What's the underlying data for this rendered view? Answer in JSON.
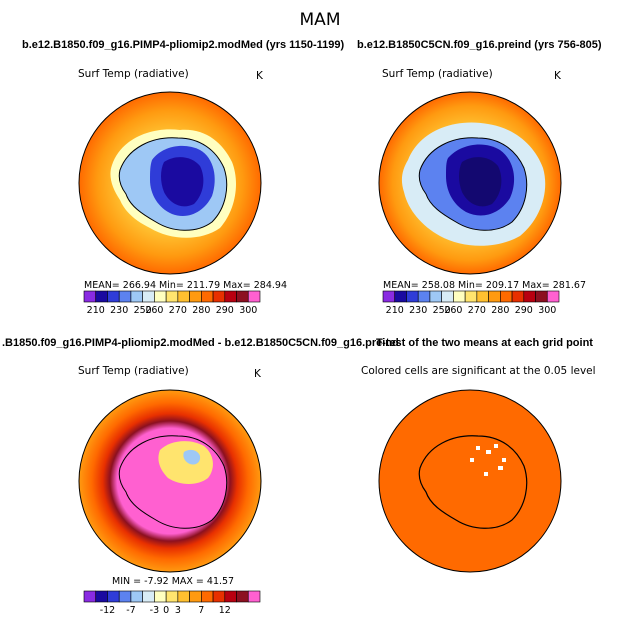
{
  "title": "MAM",
  "panels": [
    {
      "title": "b.e12.B1850.f09_g16.PIMP4-pliomip2.modMed (yrs 1150-1199)",
      "variable": "Surf Temp (radiative)",
      "units": "K",
      "stats": "MEAN= 266.94  Min= 211.79  Max= 284.94"
    },
    {
      "title": "b.e12.B1850C5CN.f09_g16.preind (yrs 756-805)",
      "variable": "Surf Temp (radiative)",
      "units": "K",
      "stats": "MEAN= 258.08  Min= 209.17  Max= 281.67"
    },
    {
      "title": ".B1850.f09_g16.PIMP4-pliomip2.modMed - b.e12.B1850C5CN.f09_g16.preind",
      "variable": "Surf Temp (radiative)",
      "units": "K",
      "stats": "MIN =  -7.92  MAX =  41.57"
    },
    {
      "title": "T-test of the two means at each grid point",
      "variable": "Colored cells are significant at the 0.05 level"
    }
  ],
  "colorbars": {
    "abs": {
      "colors": [
        "#8a2be2",
        "#1a0aa0",
        "#2f3cd8",
        "#5c82f0",
        "#9ec8f5",
        "#d8ecf6",
        "#ffffc0",
        "#ffe46e",
        "#ffc030",
        "#ff9a10",
        "#ff6a00",
        "#e83000",
        "#b80010",
        "#8c1020",
        "#ff60d0"
      ],
      "labels": [
        "210",
        "230",
        "250",
        "260",
        "270",
        "280",
        "290",
        "300"
      ]
    },
    "diff": {
      "colors": [
        "#8a2be2",
        "#1a0aa0",
        "#2f3cd8",
        "#5c82f0",
        "#9ec8f5",
        "#d8ecf6",
        "#ffffc0",
        "#ffe46e",
        "#ffc030",
        "#ff9a10",
        "#ff6a00",
        "#e83000",
        "#b80010",
        "#8c1020",
        "#ff60d0"
      ],
      "labels": [
        "-12",
        "-7",
        "-3",
        "0",
        "3",
        "7",
        "12"
      ]
    }
  },
  "chart_data": [
    {
      "type": "heatmap",
      "title": "b.e12.B1850.f09_g16.PIMP4-pliomip2.modMed (yrs 1150-1199)",
      "variable": "Surf Temp (radiative)",
      "units": "K",
      "projection": "south-polar-stereographic",
      "mean": 266.94,
      "min": 211.79,
      "max": 284.94,
      "levels": [
        210,
        220,
        230,
        240,
        250,
        255,
        260,
        265,
        270,
        275,
        280,
        285,
        290,
        295,
        300
      ],
      "colorbar_labels": [
        210,
        230,
        250,
        260,
        270,
        280,
        290,
        300
      ]
    },
    {
      "type": "heatmap",
      "title": "b.e12.B1850C5CN.f09_g16.preind (yrs 756-805)",
      "variable": "Surf Temp (radiative)",
      "units": "K",
      "projection": "south-polar-stereographic",
      "mean": 258.08,
      "min": 209.17,
      "max": 281.67,
      "levels": [
        210,
        220,
        230,
        240,
        250,
        255,
        260,
        265,
        270,
        275,
        280,
        285,
        290,
        295,
        300
      ],
      "colorbar_labels": [
        210,
        230,
        250,
        260,
        270,
        280,
        290,
        300
      ]
    },
    {
      "type": "heatmap",
      "title": ".B1850.f09_g16.PIMP4-pliomip2.modMed - b.e12.B1850C5CN.f09_g16.preind",
      "variable": "Surf Temp (radiative)",
      "units": "K",
      "projection": "south-polar-stereographic",
      "min": -7.92,
      "max": 41.57,
      "colorbar_labels": [
        -12,
        -7,
        -3,
        0,
        3,
        7,
        12
      ]
    },
    {
      "type": "heatmap",
      "title": "T-test of the two means at each grid point",
      "note": "Colored cells are significant at the 0.05 level",
      "projection": "south-polar-stereographic"
    }
  ]
}
